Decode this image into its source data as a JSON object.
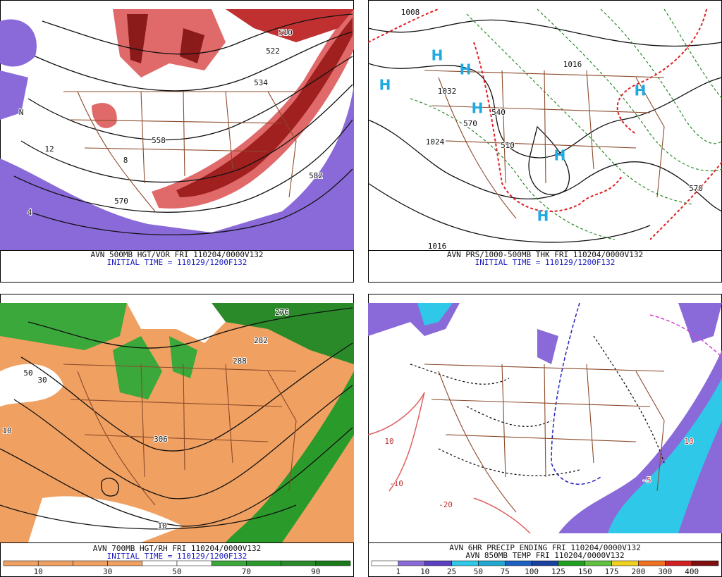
{
  "panels": [
    {
      "title": "AVN 500MB HGT/VOR FRI 110204/0000V132",
      "subtitle": "INITIAL TIME = 110129/1200F132",
      "labels": [
        "510",
        "522",
        "534",
        "558",
        "570",
        "582",
        "12",
        "8",
        "4",
        "N"
      ]
    },
    {
      "title": "AVN PRS/1000-500MB THK FRI 110204/0000V132",
      "subtitle": "INITIAL TIME = 110129/1200F132",
      "labels": [
        "1008",
        "1016",
        "1032",
        "1024",
        "540",
        "570",
        "1016",
        "570",
        "510"
      ],
      "highs": [
        "H",
        "H",
        "H",
        "H",
        "H",
        "H",
        "H"
      ]
    },
    {
      "title": "AVN 700MB HGT/RH FRI 110204/0000V132",
      "subtitle": "INITIAL TIME = 110129/1200F132",
      "labels": [
        "306",
        "282",
        "288",
        "276",
        "10",
        "50",
        "30",
        "10"
      ],
      "legend": [
        "10",
        "30",
        "50",
        "70",
        "90"
      ]
    },
    {
      "title": "AVN 6HR PRECIP ENDING FRI 110204/0000V132",
      "subtitle": "AVN 850MB TEMP FRI 110204/0000V132",
      "labels": [
        "10",
        "-10",
        "-20",
        "10",
        "-5"
      ],
      "legend": [
        "1",
        "10",
        "25",
        "50",
        "75",
        "100",
        "125",
        "150",
        "175",
        "200",
        "300",
        "400"
      ]
    }
  ]
}
